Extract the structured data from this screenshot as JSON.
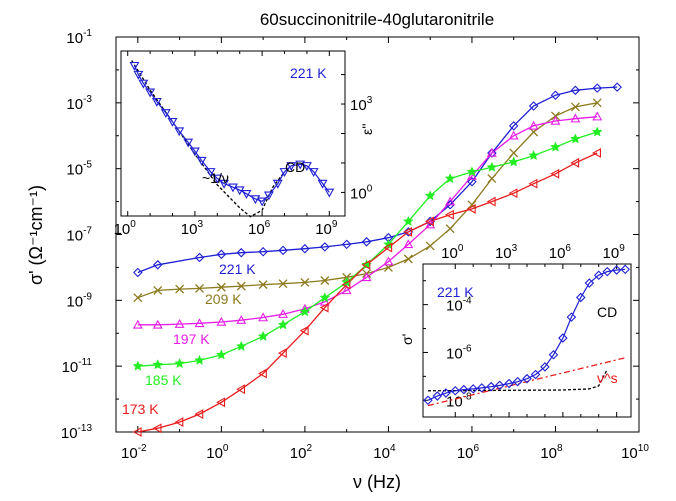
{
  "chart_data": [
    {
      "type": "scatter",
      "title": "60succinonitrile-40glutaronitrile",
      "xlabel": "ν (Hz)",
      "ylabel": "σ' (Ω⁻¹cm⁻¹)",
      "xscale": "log",
      "yscale": "log",
      "xlim": [
        0.003,
        10000000000
      ],
      "ylim": [
        1e-13,
        0.1
      ],
      "xticks": [
        "10^-2",
        "10^0",
        "10^2",
        "10^4",
        "10^6",
        "10^8",
        "10^10"
      ],
      "yticks": [
        "10^-1",
        "10^-3",
        "10^-5",
        "10^-7",
        "10^-9",
        "10^-11",
        "10^-13"
      ],
      "grid": false,
      "series": [
        {
          "name": "221 K",
          "color": "#1f1fd6",
          "marker": "diamond",
          "x": [
            0.01,
            0.03,
            0.3,
            1,
            3,
            10,
            30,
            100,
            300,
            1000,
            3000,
            10000,
            30000,
            100000,
            300000,
            1000000,
            3000000,
            10000000,
            30000000,
            100000000,
            300000000,
            1000000000,
            3000000000
          ],
          "y": [
            7e-09,
            1.2e-08,
            2e-08,
            2.5e-08,
            2.8e-08,
            3e-08,
            3.3e-08,
            3.7e-08,
            4.2e-08,
            5e-08,
            6e-08,
            8e-08,
            1.2e-07,
            2.5e-07,
            8e-07,
            4e-06,
            3e-05,
            0.0002,
            0.0008,
            0.0017,
            0.0024,
            0.0028,
            0.003
          ]
        },
        {
          "name": "209 K",
          "color": "#8c7a1e",
          "marker": "x",
          "x": [
            0.01,
            0.03,
            0.1,
            0.3,
            1,
            3,
            10,
            30,
            100,
            300,
            1000,
            3000,
            10000,
            30000,
            100000,
            300000,
            1000000,
            3000000,
            10000000,
            30000000,
            100000000,
            300000000,
            1000000000
          ],
          "y": [
            1.2e-09,
            2e-09,
            2.2e-09,
            2.3e-09,
            2.5e-09,
            2.7e-09,
            3e-09,
            3.2e-09,
            3.5e-09,
            4e-09,
            5e-09,
            6.5e-09,
            1e-08,
            1.8e-08,
            4.5e-08,
            1.5e-07,
            8e-07,
            5e-06,
            3e-05,
            0.00013,
            0.0004,
            0.00075,
            0.001
          ]
        },
        {
          "name": "197 K",
          "color": "#e81ce8",
          "marker": "triangle-up",
          "x": [
            0.01,
            0.03,
            0.1,
            0.3,
            1,
            3,
            10,
            30,
            100,
            300,
            1000,
            3000,
            10000,
            30000,
            100000,
            300000,
            1000000,
            3000000,
            10000000,
            30000000,
            100000000,
            300000000,
            1000000000
          ],
          "y": [
            1.8e-10,
            1.8e-10,
            1.9e-10,
            2e-10,
            2.2e-10,
            2.5e-10,
            3e-10,
            3.8e-10,
            5.5e-10,
            9e-10,
            2e-09,
            5e-09,
            1.5e-08,
            5e-08,
            2e-07,
            1e-06,
            6e-06,
            3e-05,
            0.0001,
            0.0002,
            0.00028,
            0.00033,
            0.00038
          ]
        },
        {
          "name": "185 K",
          "color": "#22ee22",
          "marker": "star",
          "x": [
            0.01,
            0.03,
            0.1,
            0.3,
            1,
            3,
            10,
            30,
            100,
            300,
            1000,
            3000,
            10000,
            30000,
            100000,
            300000,
            1000000,
            3000000,
            10000000,
            30000000,
            100000000,
            300000000,
            1000000000
          ],
          "y": [
            1e-11,
            1.1e-11,
            1.2e-11,
            1.5e-11,
            2.2e-11,
            4e-11,
            8e-11,
            1.8e-10,
            4.5e-10,
            1.2e-09,
            3.5e-09,
            1.2e-08,
            5e-08,
            2.5e-07,
            1.5e-06,
            5e-06,
            8e-06,
            1.1e-05,
            1.6e-05,
            2.5e-05,
            4.5e-05,
            8e-05,
            0.00013
          ]
        },
        {
          "name": "173 K",
          "color": "#e81c1c",
          "marker": "triangle-left",
          "x": [
            0.01,
            0.03,
            0.1,
            0.3,
            1,
            3,
            10,
            30,
            100,
            300,
            1000,
            3000,
            10000,
            30000,
            100000,
            300000,
            1000000,
            3000000,
            10000000,
            30000000,
            100000000,
            300000000,
            1000000000
          ],
          "y": [
            1e-13,
            1.3e-13,
            2e-13,
            3.5e-13,
            8e-13,
            2e-12,
            6e-12,
            2.5e-11,
            1.2e-10,
            6e-10,
            3e-09,
            1.2e-08,
            4e-08,
            1.2e-07,
            2.5e-07,
            4e-07,
            6e-07,
            1e-06,
            1.8e-06,
            3.5e-06,
            7e-06,
            1.5e-05,
            3e-05
          ]
        }
      ]
    },
    {
      "type": "scatter",
      "subplot": "inset-top-left",
      "annotations": [
        "221 K",
        "~1/ν",
        "CD"
      ],
      "ylabel": "ε''",
      "xscale": "log",
      "yscale": "log",
      "xticks": [
        "10^0",
        "10^3",
        "10^6",
        "10^9"
      ],
      "yticks": [
        "10^0",
        "10^3"
      ],
      "series": [
        {
          "name": "",
          "color": "#1f1fd6",
          "marker": "triangle-down",
          "x": [
            2,
            3,
            5,
            10,
            20,
            50,
            100,
            200,
            500,
            1000,
            2000,
            5000,
            10000,
            20000,
            50000,
            100000,
            200000,
            500000,
            1000000,
            2000000,
            5000000,
            10000000,
            20000000,
            50000000,
            100000000,
            200000000,
            500000000,
            1000000000
          ],
          "y": [
            20000,
            10000,
            5000,
            2500,
            1200,
            500,
            250,
            120,
            50,
            25,
            12,
            5,
            3,
            2,
            1.5,
            1.2,
            0.9,
            0.6,
            0.5,
            0.8,
            2,
            5,
            8,
            9,
            8,
            5,
            2,
            1
          ]
        }
      ]
    },
    {
      "type": "scatter",
      "subplot": "inset-bottom-right",
      "annotations": [
        "221 K",
        "CD",
        "ν^s"
      ],
      "ylabel": "σ'",
      "xscale": "log",
      "yscale": "log",
      "xticks": [
        "10^0",
        "10^3",
        "10^6",
        "10^9"
      ],
      "yticks": [
        "10^-4",
        "10^-6",
        "10^-8"
      ],
      "series": [
        {
          "name": "",
          "color": "#1f1fd6",
          "marker": "diamond",
          "x": [
            0.03,
            0.1,
            0.3,
            1,
            3,
            10,
            30,
            100,
            300,
            1000,
            3000,
            10000,
            30000,
            100000,
            300000,
            1000000,
            3000000,
            10000000,
            30000000,
            100000000,
            300000000,
            1000000000,
            3000000000
          ],
          "y": [
            1e-08,
            1.5e-08,
            2e-08,
            2.5e-08,
            2.8e-08,
            3e-08,
            3.3e-08,
            3.7e-08,
            4.2e-08,
            5e-08,
            6e-08,
            8e-08,
            1.2e-07,
            2.5e-07,
            8e-07,
            4e-06,
            3e-05,
            0.0002,
            0.0008,
            0.0017,
            0.0024,
            0.0028,
            0.003
          ]
        }
      ]
    }
  ]
}
